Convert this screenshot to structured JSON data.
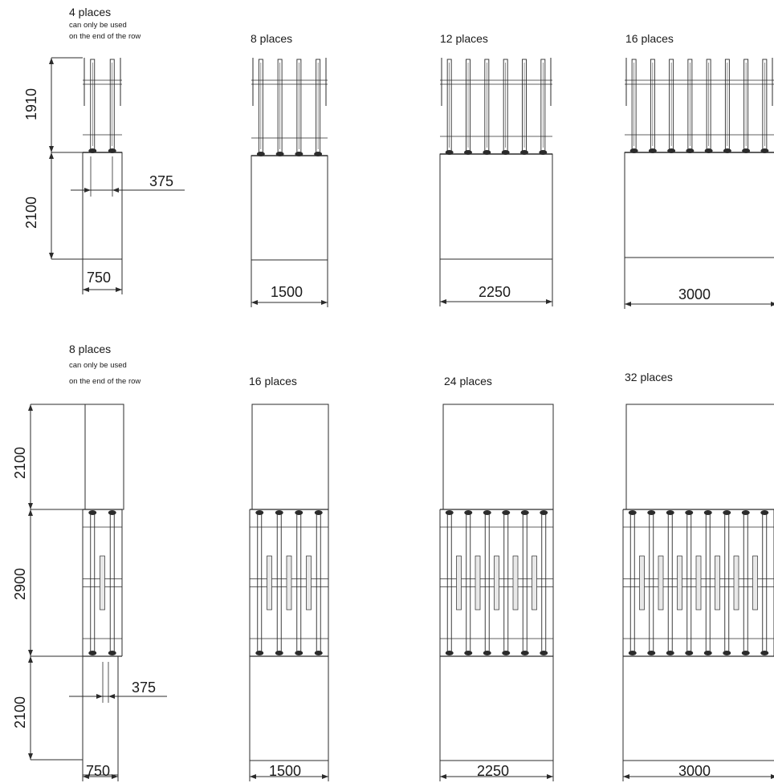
{
  "single_sided": {
    "captions": {
      "four": "4 places",
      "eight": "8 places",
      "twelve": "12 places",
      "sixteen": "16 places"
    },
    "note_line1": "can only be used",
    "note_line2": "on the end of the row",
    "rack_depth": "1910",
    "aisle_depth": "2100",
    "spacing": "375",
    "widths": [
      "750",
      "1500",
      "2250",
      "3000"
    ]
  },
  "double_sided": {
    "captions": {
      "eight": "8 places",
      "sixteen": "16 places",
      "twentyfour": "24 places",
      "thirtytwo": "32 places"
    },
    "note_line1": "can only be used",
    "note_line2": "on the end of the row",
    "aisle_top": "2100",
    "rack_depth": "2900",
    "aisle_bottom": "2100",
    "spacing": "375",
    "widths": [
      "750",
      "1500",
      "2250",
      "3000"
    ]
  },
  "colors": {
    "line": "#2b2b2b",
    "background": "#ffffff"
  }
}
